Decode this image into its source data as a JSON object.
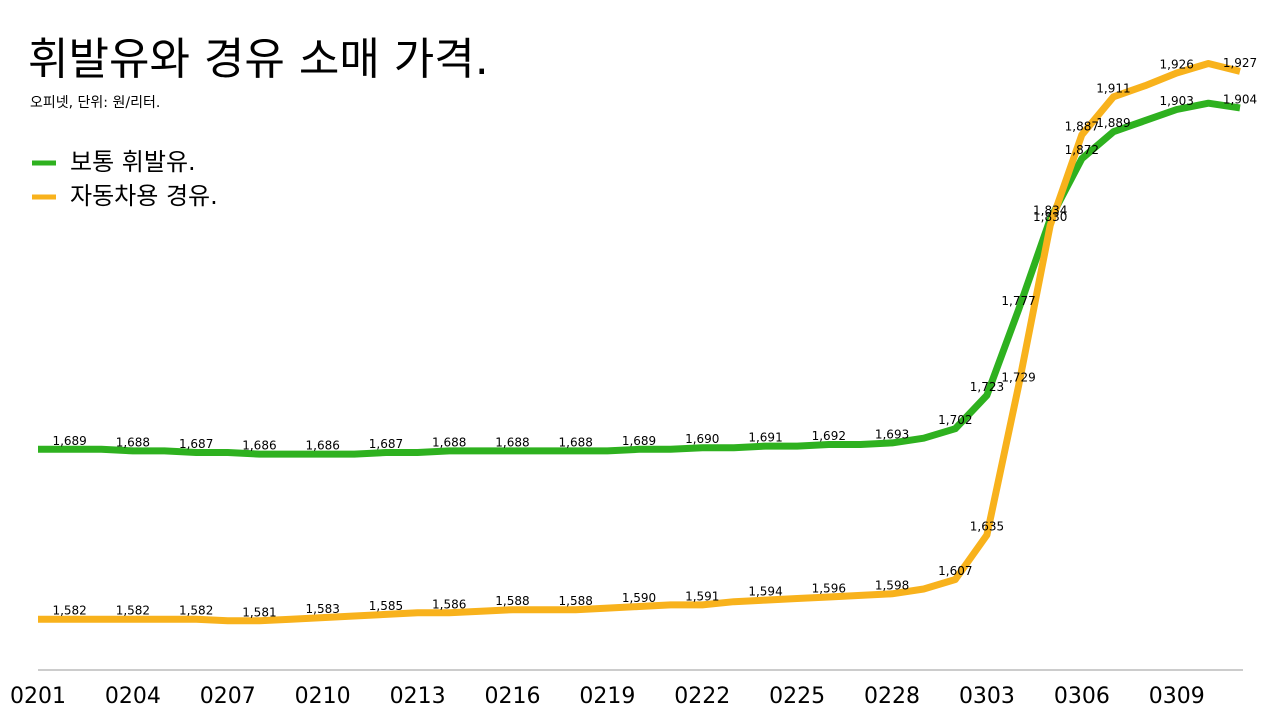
{
  "chart_data": {
    "type": "line",
    "title": "휘발유와 경유 소매 가격.",
    "subtitle": "오피넷, 단위: 원/리터.",
    "legend": "top-left",
    "categories": [
      "0201",
      null,
      null,
      "0204",
      null,
      null,
      "0207",
      null,
      null,
      "0210",
      null,
      null,
      "0213",
      null,
      null,
      "0216",
      null,
      null,
      "0219",
      null,
      null,
      "0222",
      null,
      null,
      "0225",
      null,
      null,
      "0228",
      null,
      null,
      "0303",
      null,
      null,
      "0306",
      null,
      null,
      "0309",
      null,
      null
    ],
    "ylim": [
      1550,
      1960
    ],
    "series": [
      {
        "name": "보통 휘발유.",
        "color": "#2eb11f",
        "values": [
          1689,
          1689,
          1689,
          1688,
          1688,
          1687,
          1687,
          1686,
          1686,
          1686,
          1686,
          1687,
          1687,
          1688,
          1688,
          1688,
          1688,
          1688,
          1688,
          1689,
          1689,
          1690,
          1690,
          1691,
          1691,
          1692,
          1692,
          1693,
          1696,
          1702,
          1723,
          1777,
          1834,
          1872,
          1889,
          1896,
          1903,
          1907,
          1904
        ],
        "value_labels": [
          null,
          "1,689",
          null,
          "1,688",
          null,
          "1,687",
          null,
          "1,686",
          null,
          "1,686",
          null,
          "1,687",
          null,
          "1,688",
          null,
          "1,688",
          null,
          "1,688",
          null,
          "1,689",
          null,
          "1,690",
          null,
          "1,691",
          null,
          "1,692",
          null,
          "1,693",
          null,
          "1,702",
          "1,723",
          "1,777",
          "1,834",
          "1,872",
          "1,889",
          null,
          "1,903",
          null,
          "1,904"
        ]
      },
      {
        "name": "자동차용 경유.",
        "color": "#f8b21c",
        "values": [
          1582,
          1582,
          1582,
          1582,
          1582,
          1582,
          1581,
          1581,
          1582,
          1583,
          1584,
          1585,
          1586,
          1586,
          1587,
          1588,
          1588,
          1588,
          1589,
          1590,
          1591,
          1591,
          1593,
          1594,
          1595,
          1596,
          1597,
          1598,
          1601,
          1607,
          1635,
          1729,
          1830,
          1887,
          1911,
          1918,
          1926,
          1932,
          1927
        ],
        "value_labels": [
          null,
          "1,582",
          null,
          "1,582",
          null,
          "1,582",
          null,
          "1,581",
          null,
          "1,583",
          null,
          "1,585",
          null,
          "1,586",
          null,
          "1,588",
          null,
          "1,588",
          null,
          "1,590",
          null,
          "1,591",
          null,
          "1,594",
          null,
          "1,596",
          null,
          "1,598",
          null,
          "1,607",
          "1,635",
          "1,729",
          "1,830",
          "1,887",
          "1,911",
          null,
          "1,926",
          null,
          "1,927"
        ]
      }
    ]
  }
}
